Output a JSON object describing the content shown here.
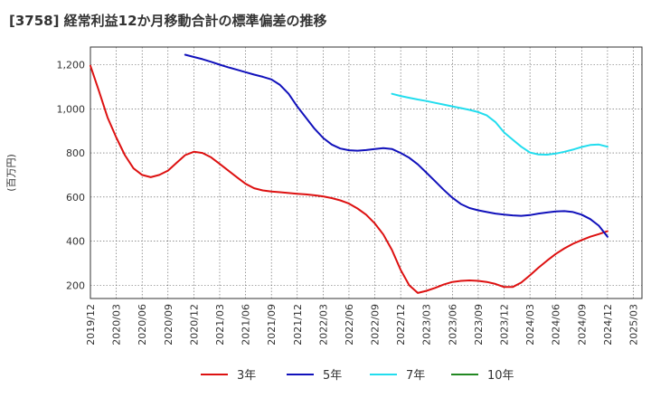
{
  "chart_data": {
    "type": "line",
    "title": "[3758]  経常利益12か月移動合計の標準偏差の推移",
    "ylabel": "(百万円)",
    "xlabel": "",
    "ylim": [
      140,
      1280
    ],
    "yticks": [
      200,
      400,
      600,
      800,
      1000,
      1200
    ],
    "ytick_labels": [
      "200",
      "400",
      "600",
      "800",
      "1,000",
      "1,200"
    ],
    "xlim": [
      2019.917,
      2025.25
    ],
    "xticks": [
      2019.917,
      2020.167,
      2020.417,
      2020.667,
      2020.917,
      2021.167,
      2021.417,
      2021.667,
      2021.917,
      2022.167,
      2022.417,
      2022.667,
      2022.917,
      2023.167,
      2023.417,
      2023.667,
      2023.917,
      2024.167,
      2024.417,
      2024.667,
      2024.917,
      2025.167
    ],
    "xtick_labels": [
      "2019/12",
      "2020/03",
      "2020/06",
      "2020/09",
      "2020/12",
      "2021/03",
      "2021/06",
      "2021/09",
      "2021/12",
      "2022/03",
      "2022/06",
      "2022/09",
      "2022/12",
      "2023/03",
      "2023/06",
      "2023/09",
      "2023/12",
      "2024/03",
      "2024/06",
      "2024/09",
      "2024/12",
      "2025/03"
    ],
    "grid": true,
    "legend_position": "bottom",
    "series": [
      {
        "name": "3年",
        "color": "#dd1111",
        "x": [
          2019.917,
          2020.0,
          2020.083,
          2020.167,
          2020.25,
          2020.333,
          2020.417,
          2020.5,
          2020.583,
          2020.667,
          2020.75,
          2020.833,
          2020.917,
          2021.0,
          2021.083,
          2021.167,
          2021.25,
          2021.333,
          2021.417,
          2021.5,
          2021.583,
          2021.667,
          2021.75,
          2021.833,
          2021.917,
          2022.0,
          2022.083,
          2022.167,
          2022.25,
          2022.333,
          2022.417,
          2022.5,
          2022.583,
          2022.667,
          2022.75,
          2022.833,
          2022.917,
          2023.0,
          2023.083,
          2023.167,
          2023.25,
          2023.333,
          2023.417,
          2023.5,
          2023.583,
          2023.667,
          2023.75,
          2023.833,
          2023.917,
          2024.0,
          2024.083,
          2024.167,
          2024.25,
          2024.333,
          2024.417,
          2024.5,
          2024.583,
          2024.667,
          2024.75,
          2024.833,
          2024.917
        ],
        "values": [
          1195,
          1080,
          960,
          870,
          790,
          730,
          700,
          690,
          700,
          720,
          755,
          790,
          805,
          800,
          780,
          750,
          720,
          690,
          660,
          640,
          630,
          625,
          622,
          618,
          615,
          612,
          608,
          603,
          595,
          585,
          570,
          548,
          520,
          480,
          430,
          360,
          270,
          200,
          165,
          175,
          188,
          203,
          215,
          220,
          222,
          220,
          215,
          206,
          192,
          192,
          212,
          245,
          280,
          312,
          342,
          367,
          388,
          405,
          420,
          432,
          445
        ]
      },
      {
        "name": "5年",
        "color": "#1111bb",
        "x": [
          2020.833,
          2020.917,
          2021.0,
          2021.083,
          2021.167,
          2021.25,
          2021.333,
          2021.417,
          2021.5,
          2021.583,
          2021.667,
          2021.75,
          2021.833,
          2021.917,
          2022.0,
          2022.083,
          2022.167,
          2022.25,
          2022.333,
          2022.417,
          2022.5,
          2022.583,
          2022.667,
          2022.75,
          2022.833,
          2022.917,
          2023.0,
          2023.083,
          2023.167,
          2023.25,
          2023.333,
          2023.417,
          2023.5,
          2023.583,
          2023.667,
          2023.75,
          2023.833,
          2023.917,
          2024.0,
          2024.083,
          2024.167,
          2024.25,
          2024.333,
          2024.417,
          2024.5,
          2024.583,
          2024.667,
          2024.75,
          2024.833,
          2024.917
        ],
        "values": [
          1245,
          1235,
          1225,
          1213,
          1200,
          1188,
          1177,
          1166,
          1155,
          1145,
          1133,
          1108,
          1068,
          1010,
          960,
          910,
          868,
          838,
          820,
          812,
          810,
          813,
          818,
          822,
          818,
          800,
          778,
          748,
          710,
          672,
          633,
          597,
          568,
          550,
          540,
          532,
          525,
          520,
          517,
          515,
          518,
          525,
          530,
          535,
          536,
          532,
          520,
          500,
          470,
          420
        ]
      },
      {
        "name": "7年",
        "color": "#22ddee",
        "x": [
          2022.833,
          2022.917,
          2023.0,
          2023.083,
          2023.167,
          2023.25,
          2023.333,
          2023.417,
          2023.5,
          2023.583,
          2023.667,
          2023.75,
          2023.833,
          2023.917,
          2024.0,
          2024.083,
          2024.167,
          2024.25,
          2024.333,
          2024.417,
          2024.5,
          2024.583,
          2024.667,
          2024.75,
          2024.833,
          2024.917
        ],
        "values": [
          1068,
          1058,
          1050,
          1042,
          1035,
          1027,
          1019,
          1011,
          1003,
          995,
          985,
          970,
          940,
          893,
          860,
          828,
          802,
          793,
          792,
          797,
          805,
          815,
          827,
          836,
          838,
          828
        ]
      },
      {
        "name": "10年",
        "color": "#228822",
        "x": [],
        "values": []
      }
    ]
  }
}
